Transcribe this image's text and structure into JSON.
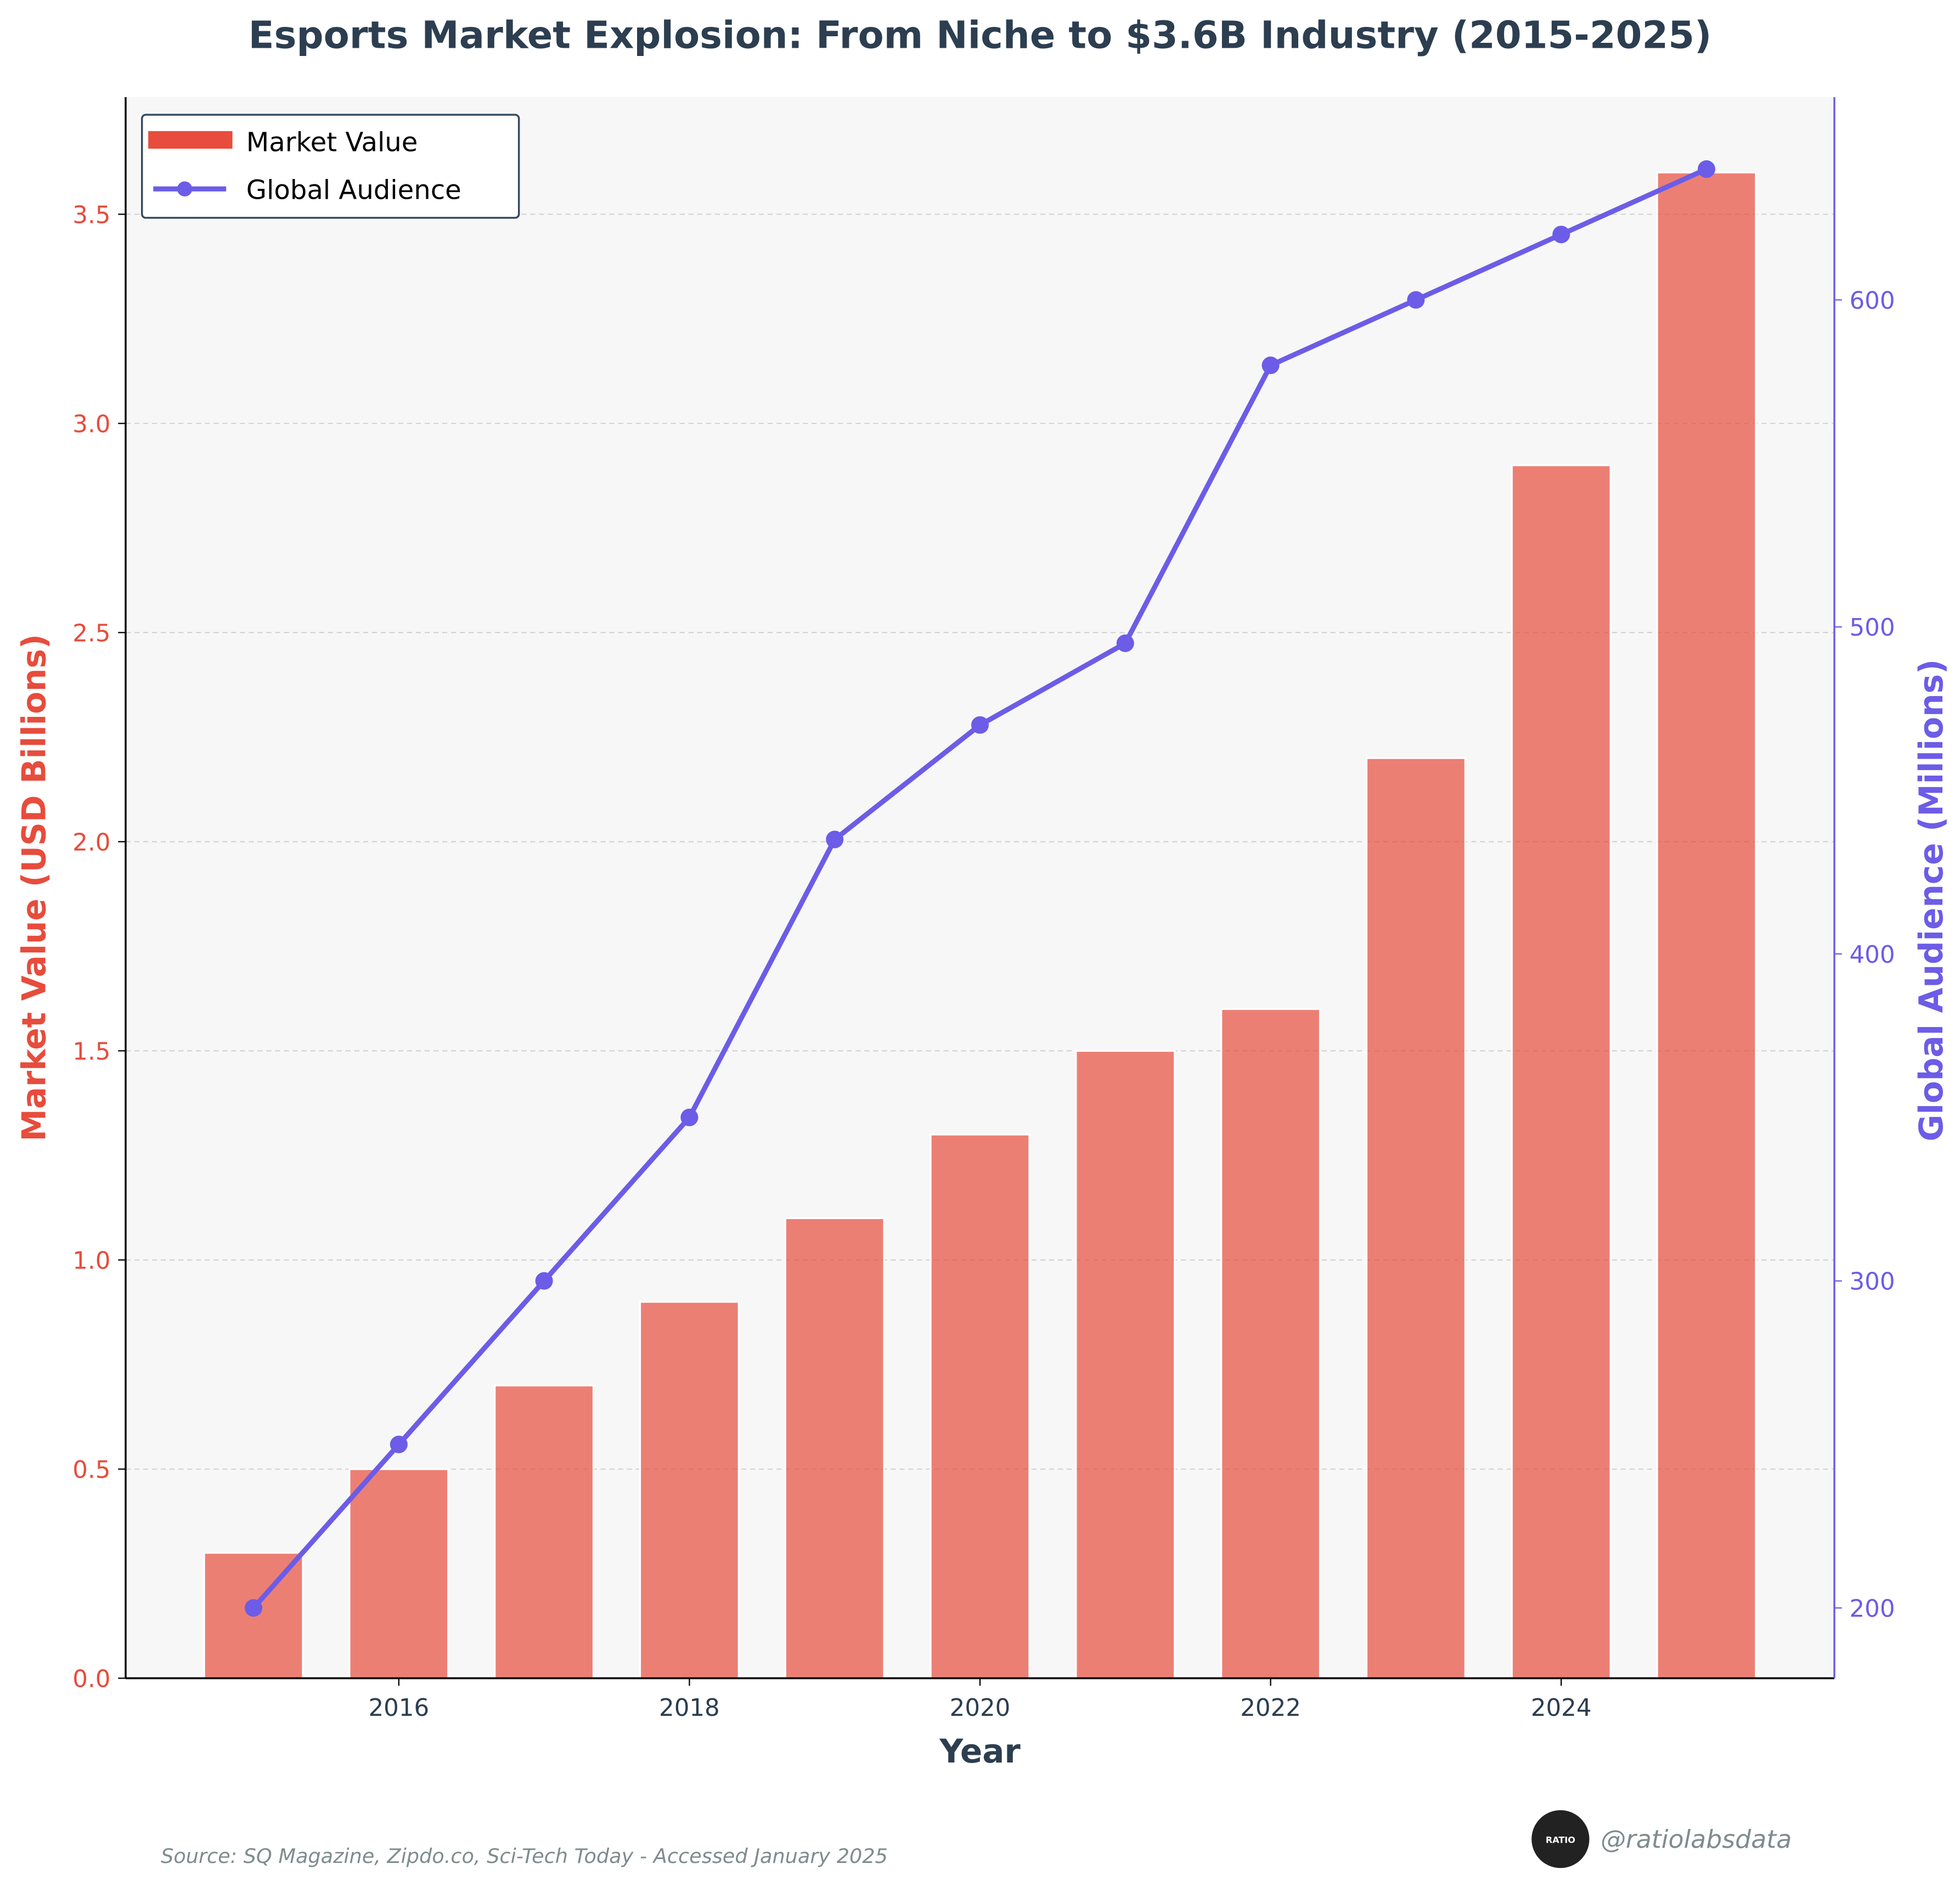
{
  "chart_data": {
    "type": "bar",
    "title": "Esports Market Explosion: From Niche to $3.6B Industry (2015-2025)",
    "xlabel": "Year",
    "ylabel": "Market Value (USD Billions)",
    "y2label": "Global Audience (Millions)",
    "x": [
      2015,
      2016,
      2017,
      2018,
      2019,
      2020,
      2021,
      2022,
      2023,
      2024,
      2025
    ],
    "xlim": [
      2014.12,
      2025.88
    ],
    "ylim": [
      0,
      3.78
    ],
    "y2lim": [
      178.5,
      662
    ],
    "xticks": [
      "2016",
      "2018",
      "2020",
      "2022",
      "2024"
    ],
    "yticks": [
      "0.0",
      "0.5",
      "1.0",
      "1.5",
      "2.0",
      "2.5",
      "3.0",
      "3.5"
    ],
    "y2ticks": [
      "200",
      "300",
      "400",
      "500",
      "600"
    ],
    "grid": true,
    "legend_position": "top-left",
    "series": [
      {
        "name": "Market Value",
        "type": "bar",
        "axis": "left",
        "color": "#e74c3c",
        "values": [
          0.3,
          0.5,
          0.7,
          0.9,
          1.1,
          1.3,
          1.5,
          1.6,
          2.2,
          2.9,
          3.6
        ]
      },
      {
        "name": "Global Audience",
        "type": "line",
        "axis": "right",
        "color": "#6c5ce7",
        "values": [
          200,
          250,
          300,
          350,
          435,
          470,
          495,
          580,
          600,
          620,
          640
        ]
      }
    ]
  },
  "footer": {
    "source": "Source: SQ Magazine, Zipdo.co, Sci-Tech Today - Accessed January 2025",
    "handle": "@ratiolabsdata",
    "logo_text": "RATIO LABS"
  },
  "colors": {
    "title": "#2c3e50",
    "bar": "#e74c3c",
    "line": "#6c5ce7",
    "plot_bg": "#f7f7f7"
  }
}
